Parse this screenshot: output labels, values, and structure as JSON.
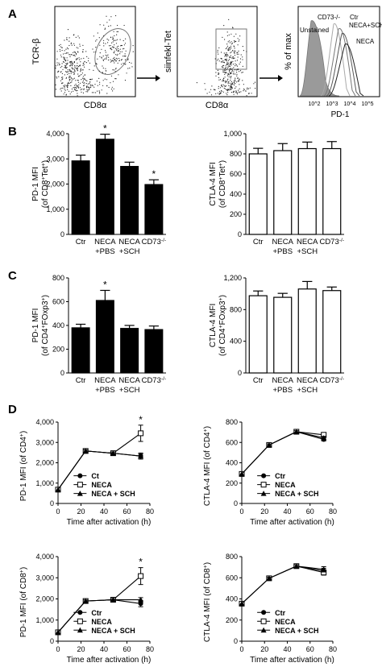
{
  "panel_labels": [
    "A",
    "B",
    "C",
    "D"
  ],
  "flow": {
    "plot1": {
      "ylabel": "TCR-β",
      "xlabel": "CD8α"
    },
    "plot2": {
      "ylabel": "siinfekl-Tet",
      "xlabel": "CD8α"
    },
    "histogram": {
      "ylabel": "% of max",
      "xlabel": "PD-1",
      "ticks": [
        "10^2",
        "10^3",
        "10^4",
        "10^5"
      ],
      "legend": [
        "Unstained",
        "CD73-/-",
        "Ctr",
        "NECA+SCH",
        "NECA"
      ]
    }
  },
  "chart_data": [
    {
      "id": "B-left",
      "type": "bar",
      "fill": "#000000",
      "categories": [
        [
          "Ctr"
        ],
        [
          "NECA",
          "+PBS"
        ],
        [
          "NECA",
          "+SCH"
        ],
        [
          "CD73-/-"
        ]
      ],
      "values": [
        2920,
        3780,
        2700,
        1980
      ],
      "errors": [
        230,
        200,
        170,
        190
      ],
      "significant": [
        false,
        true,
        false,
        true
      ],
      "ylabel": [
        "PD-1 MFI",
        "(of CD8+Tet+)"
      ],
      "ylim": [
        0,
        4000
      ],
      "yticks": [
        "0",
        "1,000",
        "2,000",
        "3,000",
        "4,000"
      ]
    },
    {
      "id": "B-right",
      "type": "bar",
      "fill": "#ffffff",
      "categories": [
        [
          "Ctr"
        ],
        [
          "NECA",
          "+PBS"
        ],
        [
          "NECA",
          "+SCH"
        ],
        [
          "CD73-/-"
        ]
      ],
      "values": [
        800,
        832,
        852,
        852
      ],
      "errors": [
        55,
        70,
        65,
        70
      ],
      "significant": [
        false,
        false,
        false,
        false
      ],
      "ylabel": [
        "CTLA-4 MFI",
        "(of CD8+Tet+)"
      ],
      "ylim": [
        0,
        1000
      ],
      "yticks": [
        "0",
        "200",
        "400",
        "600",
        "800",
        "1,000"
      ]
    },
    {
      "id": "C-left",
      "type": "bar",
      "fill": "#000000",
      "categories": [
        [
          "Ctr"
        ],
        [
          "NECA",
          "+PBS"
        ],
        [
          "NECA",
          "+SCH"
        ],
        [
          "CD73-/-"
        ]
      ],
      "values": [
        380,
        610,
        375,
        365
      ],
      "errors": [
        30,
        85,
        25,
        30
      ],
      "significant": [
        false,
        true,
        false,
        false
      ],
      "ylabel": [
        "PD-1 MFI",
        "(of CD4+FOxp3+)"
      ],
      "ylim": [
        0,
        800
      ],
      "yticks": [
        "0",
        "200",
        "400",
        "600",
        "800"
      ]
    },
    {
      "id": "C-right",
      "type": "bar",
      "fill": "#ffffff",
      "categories": [
        [
          "Ctr"
        ],
        [
          "NECA",
          "+PBS"
        ],
        [
          "NECA",
          "+SCH"
        ],
        [
          "CD73-/-"
        ]
      ],
      "values": [
        975,
        955,
        1060,
        1040
      ],
      "errors": [
        60,
        50,
        95,
        45
      ],
      "significant": [
        false,
        false,
        false,
        false
      ],
      "ylabel": [
        "CTLA-4 MFI",
        "(of CD4+FOxp3+)"
      ],
      "ylim": [
        0,
        1200
      ],
      "yticks": [
        "0",
        "400",
        "800",
        "1,200"
      ]
    },
    {
      "id": "D-top-left",
      "type": "line",
      "ylabel": "PD-1 MFI (of CD4+)",
      "xlabel": "Time after activation (h)",
      "xlim": [
        0,
        80
      ],
      "xticks": [
        "0",
        "20",
        "40",
        "60",
        "80"
      ],
      "ylim": [
        0,
        4000
      ],
      "yticks": [
        "0",
        "1,000",
        "2,000",
        "3,000",
        "4,000"
      ],
      "legend_labels": [
        "Ct",
        "NECA",
        "NECA + SCH"
      ],
      "series": [
        {
          "name": "Ct",
          "marker": "circle",
          "x": [
            0,
            24,
            48,
            72
          ],
          "y": [
            680,
            2580,
            2470,
            2330
          ],
          "err": [
            0,
            60,
            60,
            150
          ],
          "line": "segment"
        },
        {
          "name": "NECA",
          "marker": "square",
          "x": [
            0,
            24,
            48,
            72
          ],
          "y": [
            680,
            2580,
            2470,
            3450
          ],
          "err": [
            0,
            60,
            60,
            400
          ]
        },
        {
          "name": "NECA + SCH",
          "marker": "triangle",
          "x": [
            0,
            24,
            48,
            72
          ],
          "y": [
            680,
            2580,
            2470,
            2330
          ],
          "err": [
            0,
            60,
            60,
            100
          ]
        }
      ],
      "significant_x": [
        72
      ]
    },
    {
      "id": "D-top-right",
      "type": "line",
      "ylabel": "CTLA-4 MFI (of CD4+)",
      "xlabel": "Time after activation (h)",
      "xlim": [
        0,
        80
      ],
      "xticks": [
        "0",
        "20",
        "40",
        "60",
        "80"
      ],
      "ylim": [
        0,
        800
      ],
      "yticks": [
        "0",
        "200",
        "400",
        "600",
        "800"
      ],
      "legend_labels": [
        "Ctr",
        "NECA",
        "NECA + SCH"
      ],
      "series": [
        {
          "name": "Ctr",
          "marker": "circle",
          "x": [
            0,
            24,
            48,
            72
          ],
          "y": [
            290,
            575,
            705,
            630
          ],
          "err": [
            0,
            10,
            10,
            15
          ]
        },
        {
          "name": "NECA",
          "marker": "square",
          "x": [
            0,
            24,
            48,
            72
          ],
          "y": [
            290,
            575,
            705,
            675
          ],
          "err": [
            0,
            10,
            10,
            15
          ]
        },
        {
          "name": "NECA + SCH",
          "marker": "triangle",
          "x": [
            0,
            24,
            48,
            72
          ],
          "y": [
            290,
            575,
            705,
            645
          ],
          "err": [
            0,
            10,
            10,
            15
          ]
        }
      ],
      "significant_x": []
    },
    {
      "id": "D-bottom-left",
      "type": "line",
      "ylabel": "PD-1 MFI (of CD8+)",
      "xlabel": "Time after activation (h)",
      "xlim": [
        0,
        80
      ],
      "xticks": [
        "0",
        "20",
        "40",
        "60",
        "80"
      ],
      "ylim": [
        0,
        4000
      ],
      "yticks": [
        "0",
        "1,000",
        "2,000",
        "3,000",
        "4,000"
      ],
      "legend_labels": [
        "Ctr",
        "NECA",
        "NECA + SCH"
      ],
      "series": [
        {
          "name": "Ctr",
          "marker": "circle",
          "x": [
            0,
            24,
            48,
            72
          ],
          "y": [
            420,
            1900,
            1960,
            1780
          ],
          "err": [
            0,
            50,
            60,
            150
          ]
        },
        {
          "name": "NECA",
          "marker": "square",
          "x": [
            0,
            24,
            48,
            72
          ],
          "y": [
            420,
            1900,
            1960,
            3080
          ],
          "err": [
            0,
            50,
            60,
            400
          ]
        },
        {
          "name": "NECA + SCH",
          "marker": "triangle",
          "x": [
            0,
            24,
            48,
            72
          ],
          "y": [
            420,
            1900,
            1960,
            1960
          ],
          "err": [
            0,
            50,
            60,
            100
          ]
        }
      ],
      "significant_x": [
        72
      ]
    },
    {
      "id": "D-bottom-right",
      "type": "line",
      "ylabel": "CTLA-4 MFI (of CD8+)",
      "xlabel": "Time after activation (h)",
      "xlim": [
        0,
        80
      ],
      "xticks": [
        "0",
        "20",
        "40",
        "60",
        "80"
      ],
      "ylim": [
        0,
        800
      ],
      "yticks": [
        "0",
        "200",
        "400",
        "600",
        "800"
      ],
      "legend_labels": [
        "Ctr",
        "NECA",
        "NECA + SCH"
      ],
      "series": [
        {
          "name": "Ctr",
          "marker": "circle",
          "x": [
            0,
            24,
            48,
            72
          ],
          "y": [
            355,
            595,
            710,
            665
          ],
          "err": [
            0,
            10,
            12,
            25
          ]
        },
        {
          "name": "NECA",
          "marker": "square",
          "x": [
            0,
            24,
            48,
            72
          ],
          "y": [
            355,
            595,
            710,
            650
          ],
          "err": [
            0,
            10,
            12,
            25
          ]
        },
        {
          "name": "NECA + SCH",
          "marker": "triangle",
          "x": [
            0,
            24,
            48,
            72
          ],
          "y": [
            355,
            595,
            710,
            680
          ],
          "err": [
            0,
            10,
            12,
            25
          ]
        }
      ],
      "significant_x": []
    }
  ]
}
